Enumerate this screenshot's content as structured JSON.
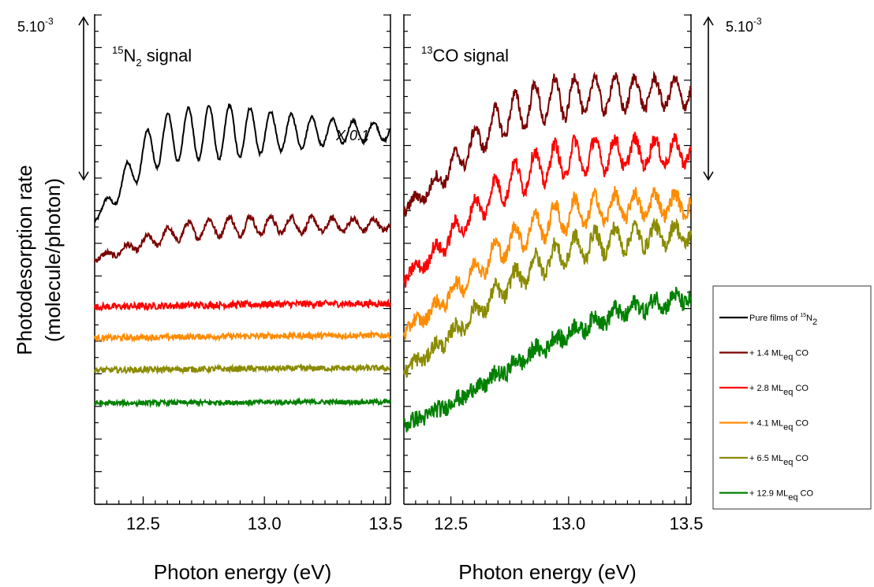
{
  "colors": {
    "pure": "#000000",
    "ml_1_4": "#7a0000",
    "ml_2_8": "#ff0000",
    "ml_4_1": "#ff8c00",
    "ml_6_5": "#8b8b00",
    "ml_12_9": "#008000"
  },
  "y_axis": {
    "title_line1": "Photodesorption rate",
    "title_line2": "(molecule/photon)"
  },
  "chart_data": [
    {
      "type": "line",
      "panel": "left",
      "title": {
        "sup": "15",
        "base": "N",
        "sub": "2",
        "rest": " signal"
      },
      "xlabel": "Photon energy (eV)",
      "xlim": [
        12.3,
        13.52
      ],
      "xticks": [
        "12.5",
        "13.0",
        "13.5"
      ],
      "annotation": "X 0.1",
      "scale_bar": {
        "base": "5.10",
        "exp": "-3"
      },
      "series": [
        {
          "key": "pure",
          "base": 0.555,
          "rise": 0.205,
          "edge": 12.42,
          "width": 0.07,
          "osc": 0.055,
          "period": 0.085,
          "decay": 0.28,
          "noise": 0.003
        },
        {
          "key": "ml_1_4",
          "base": 0.485,
          "rise": 0.085,
          "edge": 12.47,
          "width": 0.12,
          "osc": 0.02,
          "period": 0.085,
          "decay": 0.5,
          "noise": 0.006
        },
        {
          "key": "ml_2_8",
          "base": 0.4,
          "rise": 0.01,
          "edge": 12.6,
          "width": 0.3,
          "osc": 0,
          "period": 0.085,
          "decay": 1,
          "noise": 0.007
        },
        {
          "key": "ml_4_1",
          "base": 0.337,
          "rise": 0.008,
          "edge": 12.6,
          "width": 0.3,
          "osc": 0,
          "period": 0.085,
          "decay": 1,
          "noise": 0.006
        },
        {
          "key": "ml_6_5",
          "base": 0.272,
          "rise": 0.006,
          "edge": 12.6,
          "width": 0.3,
          "osc": 0,
          "period": 0.085,
          "decay": 1,
          "noise": 0.006
        },
        {
          "key": "ml_12_9",
          "base": 0.205,
          "rise": 0.004,
          "edge": 12.6,
          "width": 0.3,
          "osc": 0,
          "period": 0.085,
          "decay": 1,
          "noise": 0.005
        }
      ]
    },
    {
      "type": "line",
      "panel": "right",
      "title": {
        "sup": "13",
        "base": "CO",
        "sub": "",
        "rest": " signal"
      },
      "xlabel": "Photon energy (eV)",
      "xlim": [
        12.3,
        13.52
      ],
      "xticks": [
        "12.5",
        "13.0",
        "13.5"
      ],
      "scale_bar": {
        "base": "5.10",
        "exp": "-3"
      },
      "series": [
        {
          "key": "ml_1_4",
          "base": 0.555,
          "rise": 0.285,
          "edge": 12.52,
          "width": 0.14,
          "osc": 0.045,
          "period": 0.085,
          "decay": 0.5,
          "noise": 0.012
        },
        {
          "key": "ml_2_8",
          "base": 0.395,
          "rise": 0.325,
          "edge": 12.52,
          "width": 0.16,
          "osc": 0.04,
          "period": 0.085,
          "decay": 0.5,
          "noise": 0.014
        },
        {
          "key": "ml_4_1",
          "base": 0.29,
          "rise": 0.325,
          "edge": 12.55,
          "width": 0.18,
          "osc": 0.035,
          "period": 0.085,
          "decay": 0.5,
          "noise": 0.015
        },
        {
          "key": "ml_6_5",
          "base": 0.205,
          "rise": 0.35,
          "edge": 12.58,
          "width": 0.2,
          "osc": 0.03,
          "period": 0.085,
          "decay": 0.6,
          "noise": 0.016
        },
        {
          "key": "ml_12_9",
          "base": 0.1,
          "rise": 0.34,
          "edge": 12.72,
          "width": 0.28,
          "osc": 0.015,
          "period": 0.085,
          "decay": 0.8,
          "noise": 0.018
        }
      ]
    }
  ],
  "legend": [
    {
      "key": "pure",
      "label": "Pure films of ",
      "sup": "15",
      "tail": "N",
      "sub": "2",
      "after": ""
    },
    {
      "key": "ml_1_4",
      "label": "+ 1.4 ML",
      "sup": "",
      "tail": "",
      "sub": "eq",
      "after": " CO"
    },
    {
      "key": "ml_2_8",
      "label": "+ 2.8 ML",
      "sup": "",
      "tail": "",
      "sub": "eq",
      "after": " CO"
    },
    {
      "key": "ml_4_1",
      "label": "+ 4.1 ML",
      "sup": "",
      "tail": "",
      "sub": "eq",
      "after": " CO"
    },
    {
      "key": "ml_6_5",
      "label": "+ 6.5 ML",
      "sup": "",
      "tail": "",
      "sub": "eq",
      "after": " CO"
    },
    {
      "key": "ml_12_9",
      "label": "+ 12.9 ML",
      "sup": "",
      "tail": "",
      "sub": "eq",
      "after": " CO"
    }
  ]
}
